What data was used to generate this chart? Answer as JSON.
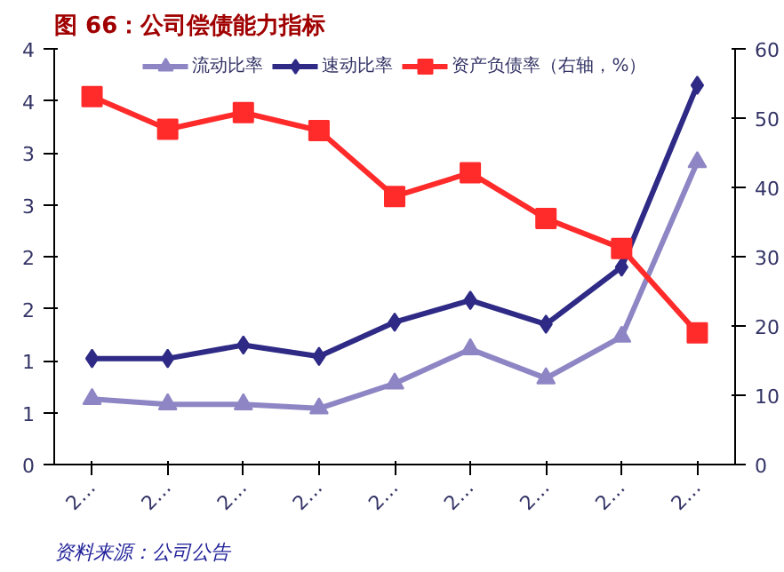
{
  "chart_data": {
    "type": "line",
    "title": "图 66：公司偿债能力指标",
    "annotations": [
      "资料来源：公司公告"
    ],
    "categories": [
      "2…",
      "2…",
      "2…",
      "2…",
      "2…",
      "2…",
      "2…",
      "2…",
      "2…"
    ],
    "series": [
      {
        "name": "流动比率",
        "color": "#8e86c4",
        "marker": "triangle",
        "values": [
          0.63,
          0.58,
          0.58,
          0.54,
          0.78,
          1.11,
          0.83,
          1.23,
          2.91
        ]
      },
      {
        "name": "速动比率",
        "color": "#2e2a85",
        "marker": "diamond",
        "values": [
          1.02,
          1.02,
          1.15,
          1.04,
          1.37,
          1.58,
          1.35,
          1.9,
          3.65
        ]
      },
      {
        "name": "资产负债率（右轴，%）",
        "color": "#ff2a2a",
        "marker": "square",
        "axis": "y2",
        "values": [
          53.1,
          48.4,
          50.8,
          48.2,
          38.7,
          42.1,
          35.5,
          31.2,
          19.0
        ]
      }
    ],
    "ylim": [
      0,
      4
    ],
    "yticks": [
      0,
      {
        "value": 0.5,
        "label": "1"
      },
      1,
      {
        "value": 1.5,
        "label": "2"
      },
      2,
      {
        "value": 2.5,
        "label": "3"
      },
      3,
      {
        "value": 3.5,
        "label": "4"
      },
      4
    ],
    "y2lim": [
      0,
      60
    ],
    "y2ticks": [
      0,
      10,
      20,
      30,
      40,
      50,
      60
    ],
    "legend": "top",
    "grid": false
  }
}
